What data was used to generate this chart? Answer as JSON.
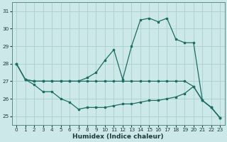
{
  "xlabel": "Humidex (Indice chaleur)",
  "background_color": "#cce8e8",
  "grid_color": "#aad0d0",
  "line_color": "#1a6e64",
  "xlim": [
    -0.5,
    23.5
  ],
  "ylim": [
    24.5,
    31.5
  ],
  "yticks": [
    25,
    26,
    27,
    28,
    29,
    30,
    31
  ],
  "xticks": [
    0,
    1,
    2,
    3,
    4,
    5,
    6,
    7,
    8,
    9,
    10,
    11,
    12,
    13,
    14,
    15,
    16,
    17,
    18,
    19,
    20,
    21,
    22,
    23
  ],
  "line1": [
    28.0,
    27.1,
    27.0,
    27.0,
    27.0,
    27.0,
    27.0,
    27.0,
    27.2,
    27.5,
    28.2,
    28.8,
    27.1,
    29.0,
    30.5,
    30.6,
    30.4,
    30.6,
    29.4,
    29.2,
    29.2,
    25.9,
    25.5,
    24.9
  ],
  "line2": [
    28.0,
    27.1,
    27.0,
    27.0,
    27.0,
    27.0,
    27.0,
    27.0,
    27.0,
    27.0,
    27.0,
    27.0,
    27.0,
    27.0,
    27.0,
    27.0,
    27.0,
    27.0,
    27.0,
    27.0,
    26.7,
    25.9,
    25.5,
    24.9
  ],
  "line3": [
    28.0,
    27.1,
    26.8,
    26.4,
    26.4,
    26.0,
    25.8,
    25.4,
    25.5,
    25.5,
    25.5,
    25.6,
    25.7,
    25.7,
    25.8,
    25.9,
    25.9,
    26.0,
    26.1,
    26.3,
    26.7,
    25.9,
    25.5,
    24.9
  ]
}
